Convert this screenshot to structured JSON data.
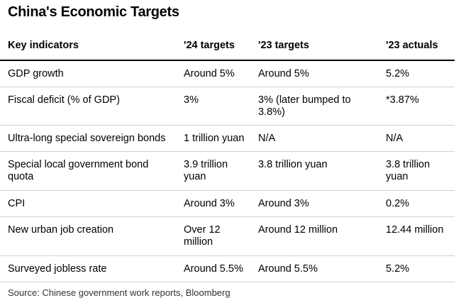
{
  "title": "China's Economic Targets",
  "table": {
    "headers": [
      "Key indicators",
      "'24 targets",
      "'23 targets",
      "'23 actuals"
    ],
    "rows": [
      [
        "GDP growth",
        "Around 5%",
        "Around 5%",
        "5.2%"
      ],
      [
        "Fiscal deficit (% of GDP)",
        "3%",
        "3% (later bumped to 3.8%)",
        "*3.87%"
      ],
      [
        "Ultra-long special sovereign bonds",
        "1 trillion yuan",
        "N/A",
        "N/A"
      ],
      [
        "Special local government bond quota",
        "3.9 trillion yuan",
        "3.8 trillion yuan",
        "3.8 trillion yuan"
      ],
      [
        "CPI",
        "Around 3%",
        "Around 3%",
        "0.2%"
      ],
      [
        "New urban job creation",
        "Over 12 million",
        "Around 12 million",
        "12.44 million"
      ],
      [
        "Surveyed jobless rate",
        "Around 5.5%",
        "Around 5.5%",
        "5.2%"
      ]
    ]
  },
  "source": "Source: Chinese government work reports, Bloomberg"
}
